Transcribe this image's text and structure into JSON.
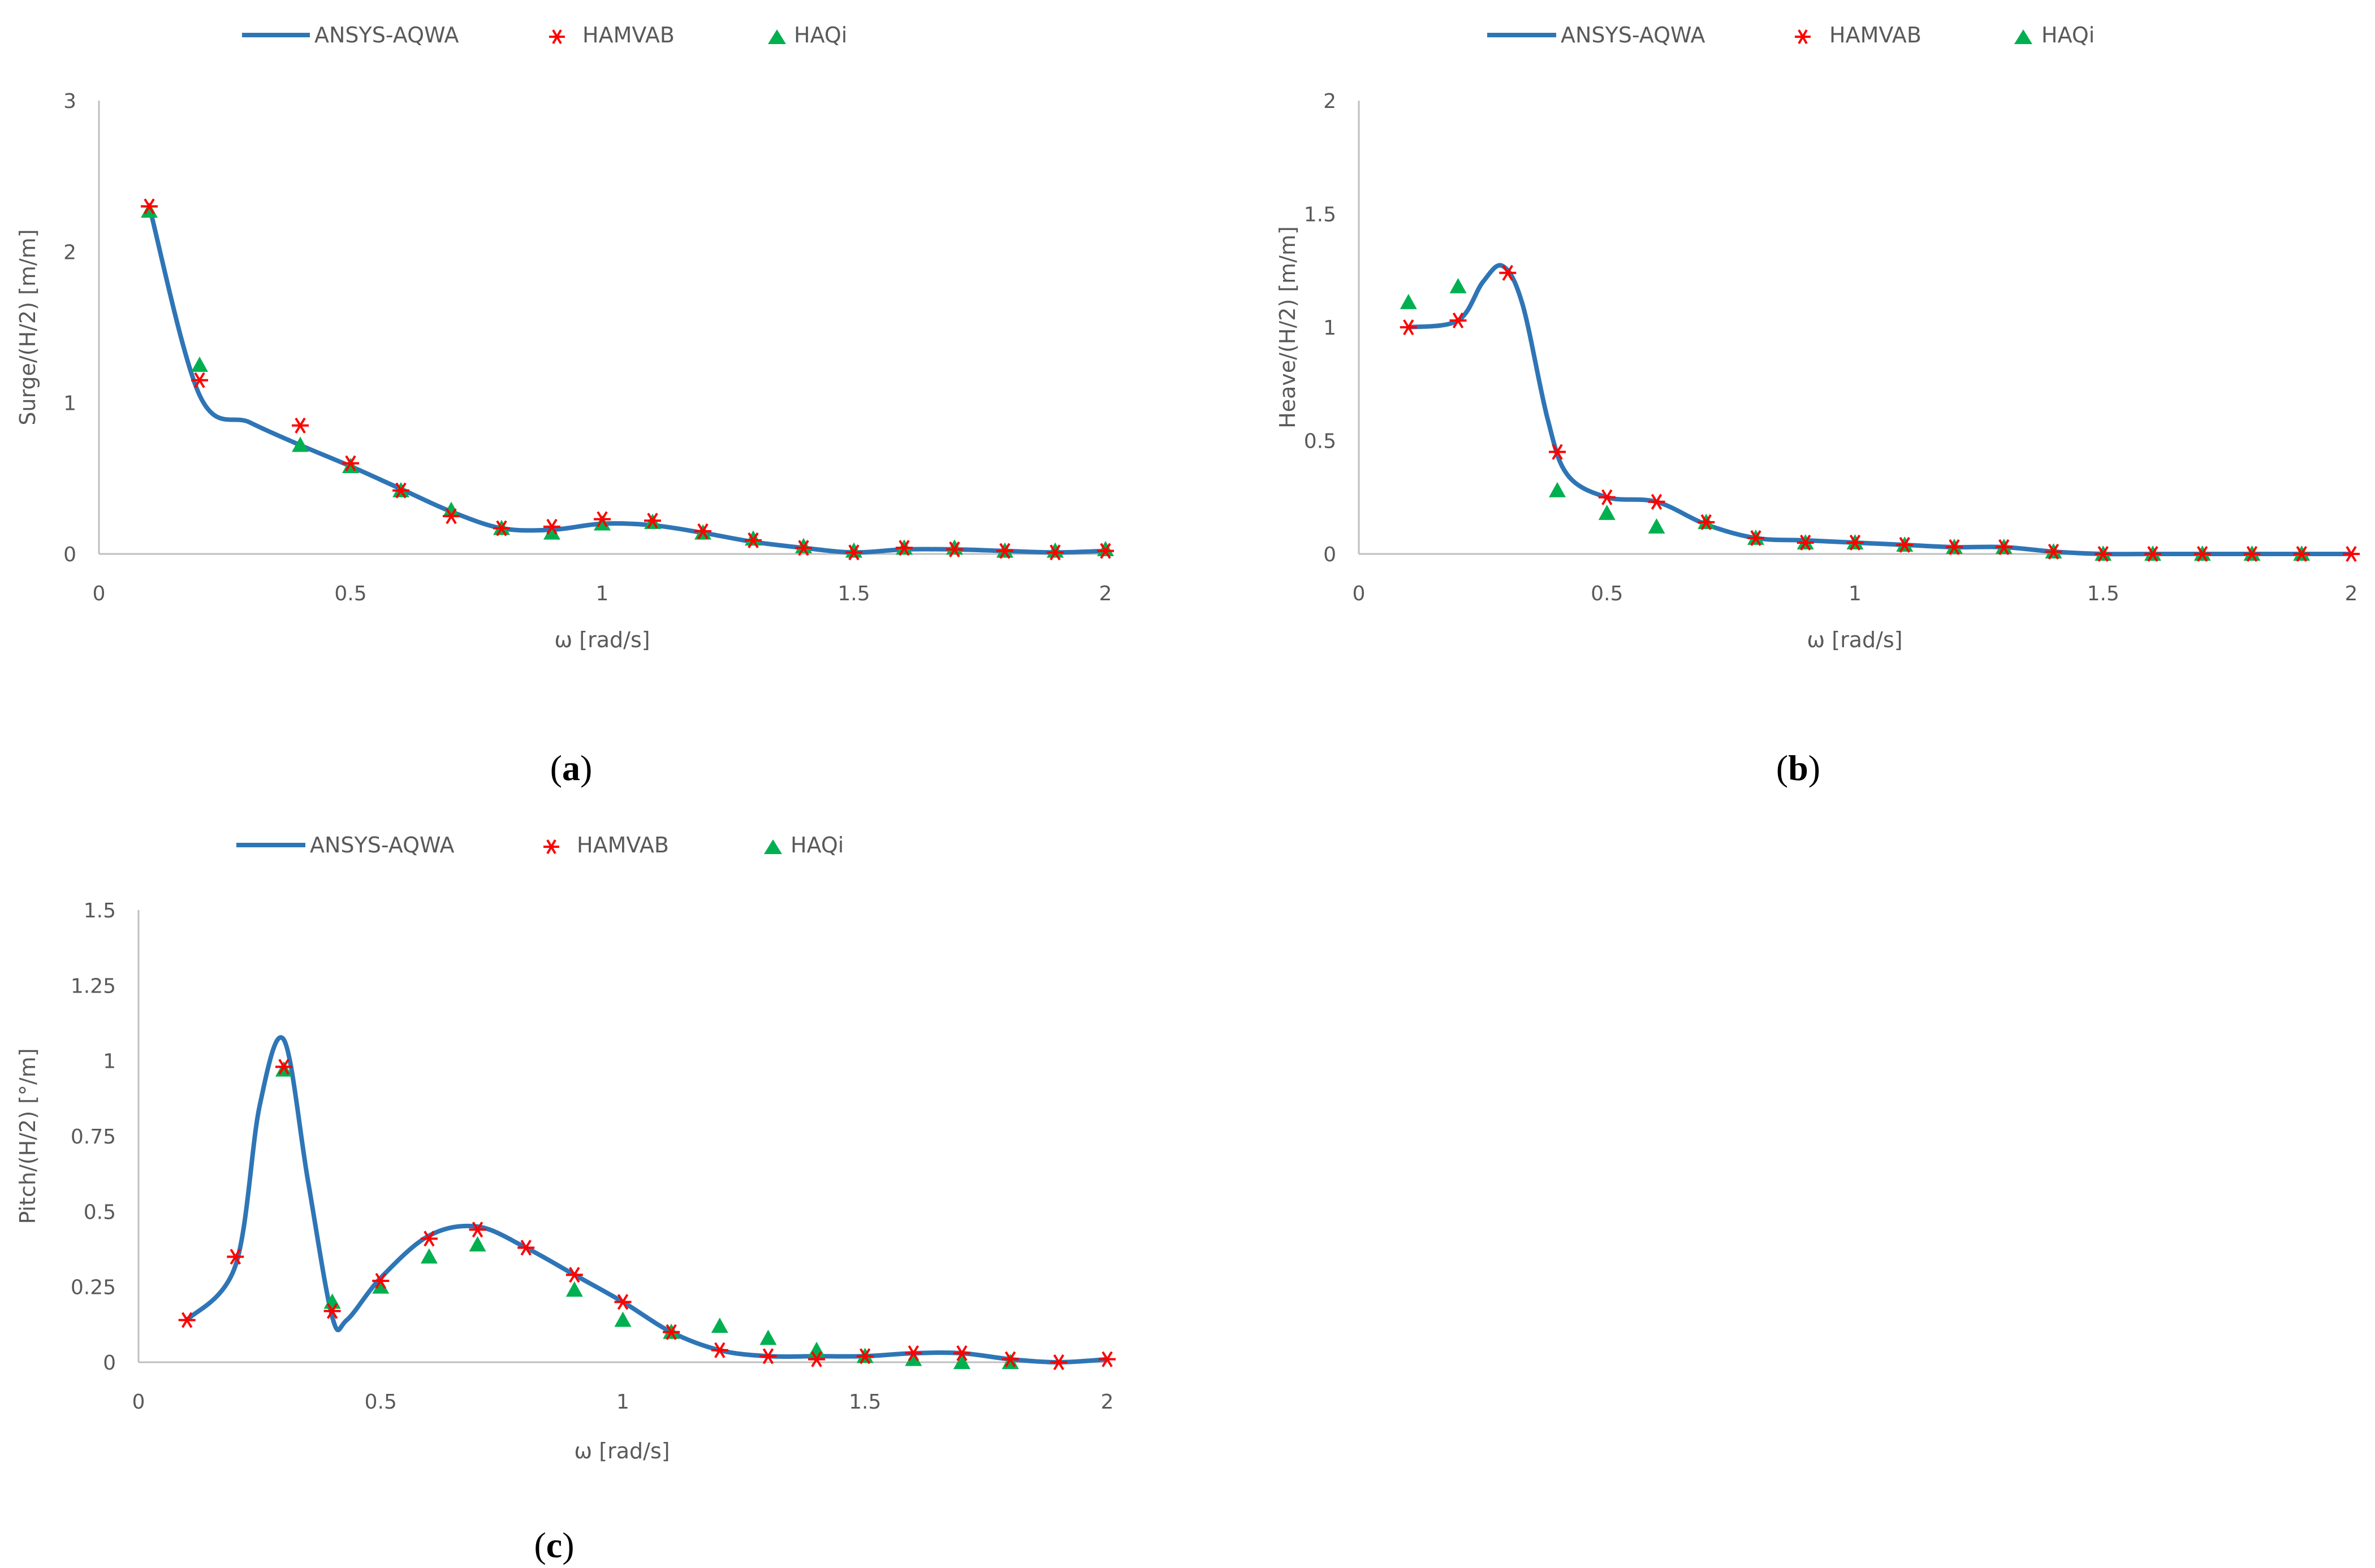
{
  "colors": {
    "line": "#2E75B6",
    "hamvab": "#FF0000",
    "haqi": "#00B050",
    "axis": "#BFBFBF",
    "text": "#595959"
  },
  "chart_data": [
    {
      "id": "a",
      "type": "line",
      "caption_letter": "a",
      "xlabel": "ω [rad/s]",
      "ylabel": "Surge/(H/2) [m/m]",
      "xlim": [
        0,
        2
      ],
      "ylim": [
        0,
        3
      ],
      "xticks": [
        "0",
        "0.5",
        "1",
        "1.5",
        "2"
      ],
      "xtick_values": [
        0,
        0.5,
        1,
        1.5,
        2
      ],
      "yticks": [
        "0",
        "1",
        "2",
        "3"
      ],
      "ytick_values": [
        0,
        1,
        2,
        3
      ],
      "legend": [
        "ANSYS-AQWA",
        "HAMVAB",
        "HAQi"
      ],
      "series": [
        {
          "name": "ANSYS-AQWA",
          "kind": "line",
          "x": [
            0.1,
            0.2,
            0.3,
            0.4,
            0.5,
            0.6,
            0.7,
            0.8,
            0.9,
            1.0,
            1.1,
            1.2,
            1.3,
            1.4,
            1.5,
            1.6,
            1.7,
            1.8,
            1.9,
            2.0
          ],
          "y": [
            2.3,
            1.05,
            0.87,
            0.72,
            0.58,
            0.43,
            0.28,
            0.17,
            0.16,
            0.2,
            0.19,
            0.14,
            0.08,
            0.04,
            0.01,
            0.03,
            0.03,
            0.02,
            0.01,
            0.02
          ]
        },
        {
          "name": "HAMVAB",
          "kind": "star",
          "x": [
            0.1,
            0.2,
            0.4,
            0.5,
            0.6,
            0.7,
            0.8,
            0.9,
            1.0,
            1.1,
            1.2,
            1.3,
            1.4,
            1.5,
            1.6,
            1.7,
            1.8,
            1.9,
            2.0
          ],
          "y": [
            2.3,
            1.15,
            0.85,
            0.6,
            0.42,
            0.25,
            0.17,
            0.18,
            0.23,
            0.22,
            0.15,
            0.09,
            0.04,
            0.01,
            0.04,
            0.03,
            0.02,
            0.01,
            0.02
          ]
        },
        {
          "name": "HAQi",
          "kind": "triangle",
          "x": [
            0.1,
            0.2,
            0.4,
            0.5,
            0.6,
            0.7,
            0.8,
            0.9,
            1.0,
            1.1,
            1.2,
            1.3,
            1.4,
            1.5,
            1.6,
            1.7,
            1.8,
            1.9,
            2.0
          ],
          "y": [
            2.27,
            1.25,
            0.72,
            0.58,
            0.42,
            0.29,
            0.17,
            0.14,
            0.2,
            0.21,
            0.14,
            0.1,
            0.05,
            0.02,
            0.04,
            0.04,
            0.02,
            0.02,
            0.03
          ]
        }
      ]
    },
    {
      "id": "b",
      "type": "line",
      "caption_letter": "b",
      "xlabel": "ω [rad/s]",
      "ylabel": "Heave/(H/2) [m/m]",
      "xlim": [
        0,
        2
      ],
      "ylim": [
        0,
        2
      ],
      "xticks": [
        "0",
        "0.5",
        "1",
        "1.5",
        "2"
      ],
      "xtick_values": [
        0,
        0.5,
        1,
        1.5,
        2
      ],
      "yticks": [
        "0",
        "0.5",
        "1",
        "1.5",
        "2"
      ],
      "ytick_values": [
        0,
        0.5,
        1,
        1.5,
        2
      ],
      "legend": [
        "ANSYS-AQWA",
        "HAMVAB",
        "HAQi"
      ],
      "series": [
        {
          "name": "ANSYS-AQWA",
          "kind": "line",
          "x": [
            0.1,
            0.2,
            0.25,
            0.29,
            0.33,
            0.38,
            0.42,
            0.5,
            0.6,
            0.7,
            0.8,
            0.9,
            1.0,
            1.1,
            1.2,
            1.3,
            1.4,
            1.5,
            1.6,
            1.7,
            1.8,
            1.9,
            2.0
          ],
          "y": [
            1.0,
            1.03,
            1.2,
            1.27,
            1.1,
            0.6,
            0.35,
            0.25,
            0.23,
            0.13,
            0.07,
            0.06,
            0.05,
            0.04,
            0.03,
            0.03,
            0.01,
            0.0,
            0.0,
            0.0,
            0.0,
            0.0,
            0.0
          ]
        },
        {
          "name": "HAMVAB",
          "kind": "star",
          "x": [
            0.1,
            0.2,
            0.3,
            0.4,
            0.5,
            0.6,
            0.7,
            0.8,
            0.9,
            1.0,
            1.1,
            1.2,
            1.3,
            1.4,
            1.5,
            1.6,
            1.7,
            1.8,
            1.9,
            2.0
          ],
          "y": [
            1.0,
            1.03,
            1.24,
            0.45,
            0.25,
            0.23,
            0.14,
            0.07,
            0.05,
            0.05,
            0.04,
            0.03,
            0.03,
            0.01,
            0.0,
            0.0,
            0.0,
            0.0,
            0.0,
            0.0
          ]
        },
        {
          "name": "HAQi",
          "kind": "triangle",
          "x": [
            0.1,
            0.2,
            0.4,
            0.5,
            0.6,
            0.7,
            0.8,
            0.9,
            1.0,
            1.1,
            1.2,
            1.3,
            1.4,
            1.5,
            1.6,
            1.7,
            1.8,
            1.9
          ],
          "y": [
            1.11,
            1.18,
            0.28,
            0.18,
            0.12,
            0.14,
            0.07,
            0.05,
            0.05,
            0.04,
            0.03,
            0.03,
            0.01,
            0.0,
            0.0,
            0.0,
            0.0,
            0.0
          ]
        }
      ]
    },
    {
      "id": "c",
      "type": "line",
      "caption_letter": "c",
      "xlabel": "ω [rad/s]",
      "ylabel": "Pitch/(H/2) [°/m]",
      "xlim": [
        0,
        2
      ],
      "ylim": [
        0,
        1.5
      ],
      "xticks": [
        "0",
        "0.5",
        "1",
        "1.5",
        "2"
      ],
      "xtick_values": [
        0,
        0.5,
        1,
        1.5,
        2
      ],
      "yticks": [
        "0",
        "0.25",
        "0.5",
        "0.75",
        "1",
        "1.25",
        "1.5"
      ],
      "ytick_values": [
        0,
        0.25,
        0.5,
        0.75,
        1,
        1.25,
        1.5
      ],
      "legend": [
        "ANSYS-AQWA",
        "HAMVAB",
        "HAQi"
      ],
      "series": [
        {
          "name": "ANSYS-AQWA",
          "kind": "line",
          "x": [
            0.1,
            0.2,
            0.25,
            0.3,
            0.35,
            0.4,
            0.43,
            0.5,
            0.6,
            0.7,
            0.8,
            0.9,
            1.0,
            1.1,
            1.2,
            1.3,
            1.4,
            1.5,
            1.6,
            1.7,
            1.8,
            1.9,
            2.0
          ],
          "y": [
            0.14,
            0.32,
            0.85,
            1.07,
            0.6,
            0.15,
            0.14,
            0.28,
            0.42,
            0.45,
            0.38,
            0.29,
            0.2,
            0.1,
            0.04,
            0.02,
            0.02,
            0.02,
            0.03,
            0.03,
            0.01,
            0.0,
            0.01
          ]
        },
        {
          "name": "HAMVAB",
          "kind": "star",
          "x": [
            0.1,
            0.2,
            0.3,
            0.4,
            0.5,
            0.6,
            0.7,
            0.8,
            0.9,
            1.0,
            1.1,
            1.2,
            1.3,
            1.4,
            1.5,
            1.6,
            1.7,
            1.8,
            1.9,
            2.0
          ],
          "y": [
            0.14,
            0.35,
            0.98,
            0.17,
            0.27,
            0.41,
            0.44,
            0.38,
            0.29,
            0.2,
            0.1,
            0.04,
            0.02,
            0.01,
            0.02,
            0.03,
            0.03,
            0.01,
            0.0,
            0.01
          ]
        },
        {
          "name": "HAQi",
          "kind": "triangle",
          "x": [
            0.3,
            0.4,
            0.5,
            0.6,
            0.7,
            0.9,
            1.0,
            1.1,
            1.2,
            1.3,
            1.4,
            1.5,
            1.6,
            1.7,
            1.8
          ],
          "y": [
            0.97,
            0.2,
            0.25,
            0.35,
            0.39,
            0.24,
            0.14,
            0.1,
            0.12,
            0.08,
            0.04,
            0.02,
            0.01,
            0.0,
            0.0
          ]
        }
      ]
    }
  ]
}
